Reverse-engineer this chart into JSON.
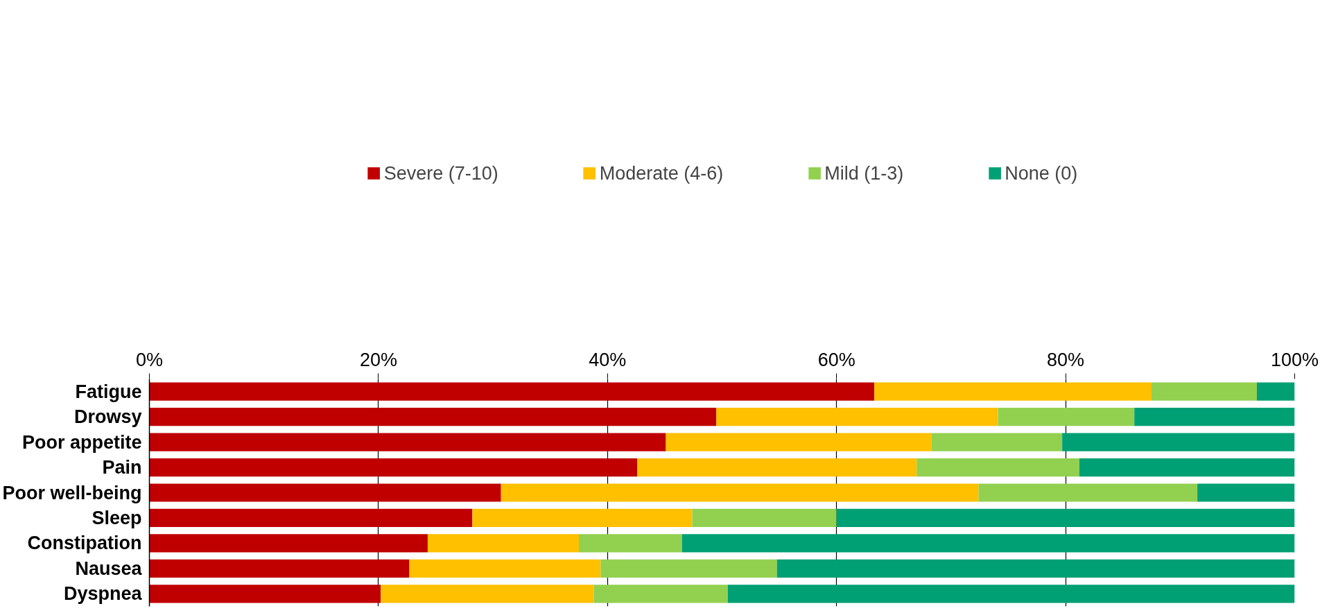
{
  "chart_data": {
    "type": "bar",
    "orientation": "horizontal",
    "stacked": true,
    "categories": [
      "Fatigue",
      "Drowsy",
      "Poor appetite",
      "Pain",
      "Poor well-being",
      "Sleep",
      "Constipation",
      "Nausea",
      "Dyspnea"
    ],
    "series": [
      {
        "name": "Severe (7-10)",
        "color": "#c00000",
        "values": [
          63.3,
          49.5,
          45.1,
          42.6,
          30.7,
          28.2,
          24.3,
          22.7,
          20.2
        ]
      },
      {
        "name": "Moderate (4-6)",
        "color": "#ffc000",
        "values": [
          24.2,
          24.6,
          23.2,
          24.4,
          41.7,
          19.2,
          13.2,
          16.7,
          18.6
        ]
      },
      {
        "name": "Mild (1-3)",
        "color": "#92d050",
        "values": [
          9.2,
          11.9,
          11.4,
          14.2,
          19.1,
          12.6,
          9.0,
          15.4,
          11.7
        ]
      },
      {
        "name": "None (0)",
        "color": "#00a074",
        "values": [
          3.3,
          14.0,
          20.3,
          18.8,
          8.5,
          40.0,
          53.5,
          45.2,
          49.5
        ]
      }
    ],
    "xlim": [
      0,
      100
    ],
    "xticks": [
      {
        "value": 0,
        "label": "0%"
      },
      {
        "value": 20,
        "label": "20%"
      },
      {
        "value": 40,
        "label": "40%"
      },
      {
        "value": 60,
        "label": "60%"
      },
      {
        "value": 80,
        "label": "80%"
      },
      {
        "value": 100,
        "label": "100%"
      }
    ],
    "grid": "x",
    "legend": "top"
  }
}
